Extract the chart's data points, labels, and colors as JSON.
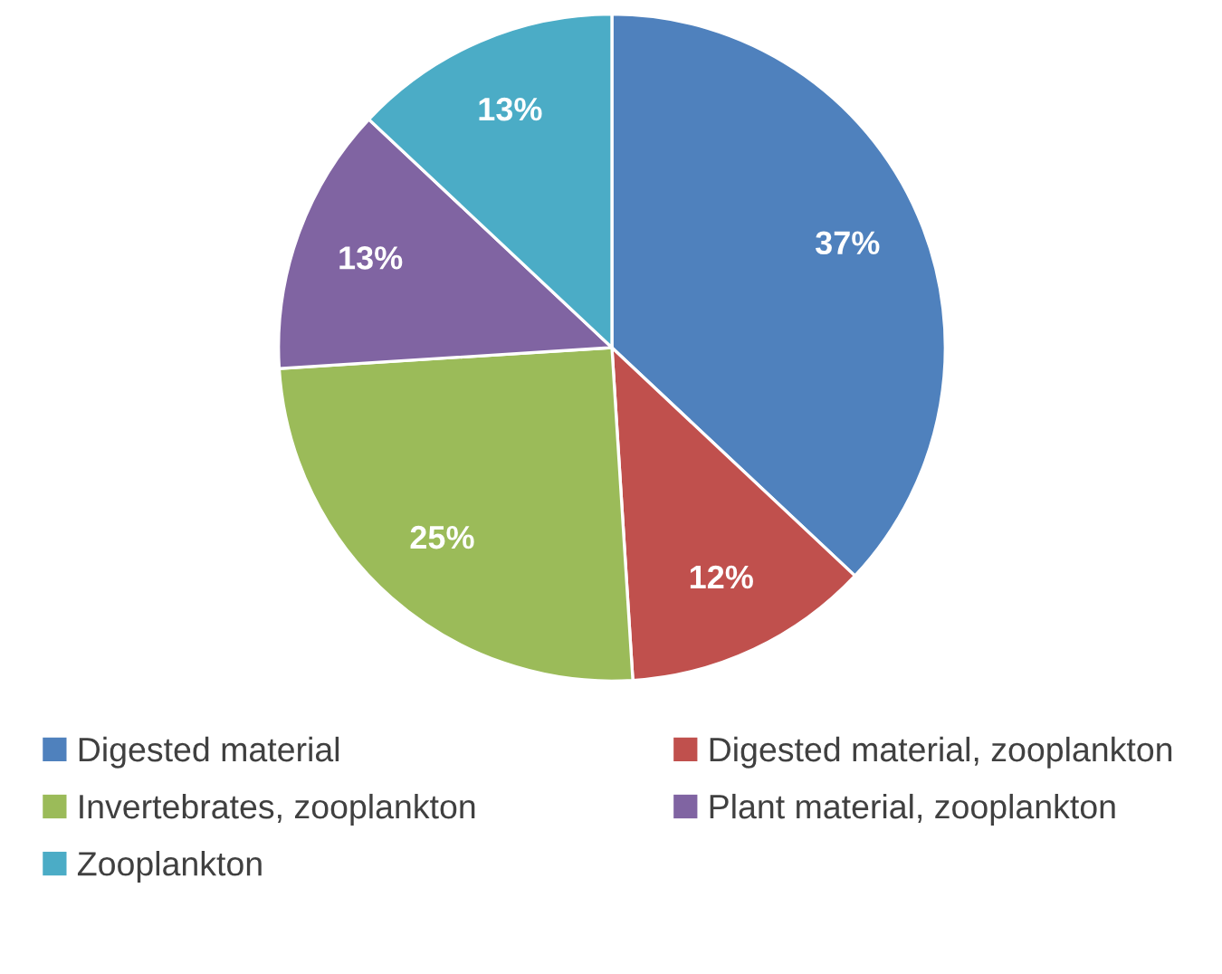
{
  "chart_data": {
    "type": "pie",
    "categories": [
      "Digested material",
      "Digested material, zooplankton",
      "Invertebrates, zooplankton",
      "Plant material, zooplankton",
      "Zooplankton"
    ],
    "values": [
      37,
      12,
      25,
      13,
      13
    ],
    "value_labels": [
      "37%",
      "12%",
      "25%",
      "13%",
      "13%"
    ],
    "colors": [
      "#4f81bd",
      "#c0504d",
      "#9bbb59",
      "#8064a2",
      "#4bacc6"
    ],
    "legend": "bottom"
  }
}
